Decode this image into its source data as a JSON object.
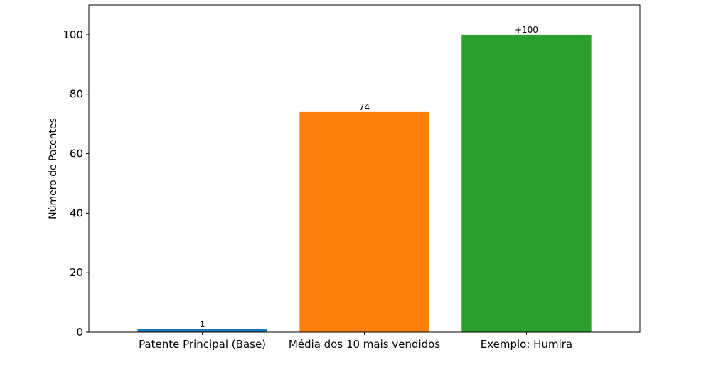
{
  "chart_data": {
    "type": "bar",
    "title": "",
    "xlabel": "",
    "ylabel": "Número de Patentes",
    "categories": [
      "Patente Principal (Base)",
      "Média dos 10 mais vendidos",
      "Exemplo: Humira"
    ],
    "values": [
      1,
      74,
      100
    ],
    "data_labels": [
      "1",
      "74",
      "+100"
    ],
    "colors": [
      "#1f77b4",
      "#ff7f0e",
      "#2ca02c"
    ],
    "ylim": [
      0,
      110
    ],
    "yticks": [
      0,
      20,
      40,
      60,
      80,
      100
    ],
    "grid": false,
    "legend": "none"
  }
}
